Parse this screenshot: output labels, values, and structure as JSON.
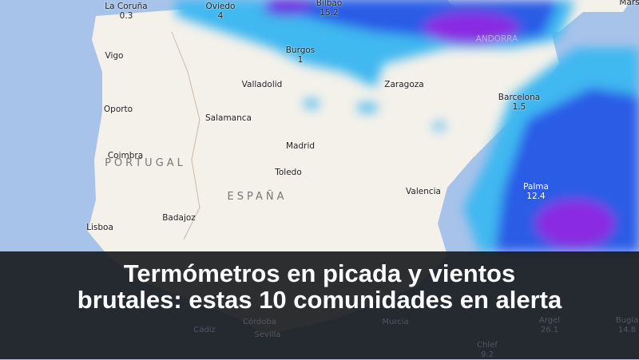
{
  "map": {
    "cities": [
      {
        "name": "La Coruña",
        "value": "0.3"
      },
      {
        "name": "Oviedo",
        "value": "4"
      },
      {
        "name": "Bilbao",
        "value": "15.2"
      },
      {
        "name": "Burgos",
        "value": "1"
      },
      {
        "name": "Vigo"
      },
      {
        "name": "Valladolid"
      },
      {
        "name": "Zaragoza"
      },
      {
        "name": "Oporto"
      },
      {
        "name": "Salamanca"
      },
      {
        "name": "Barcelona",
        "value": "1.5"
      },
      {
        "name": "Madrid"
      },
      {
        "name": "Coimbra"
      },
      {
        "name": "Toledo"
      },
      {
        "name": "Valencia"
      },
      {
        "name": "Palma",
        "value": "12.4"
      },
      {
        "name": "Badajoz"
      },
      {
        "name": "Lisboa"
      },
      {
        "name": "Mars"
      }
    ],
    "countries": [
      "PORTUGAL",
      "ESPAÑA",
      "ANDORRA"
    ],
    "under_overlay": [
      {
        "name": "Córdoba"
      },
      {
        "name": "Murcia"
      },
      {
        "name": "Sevilla"
      },
      {
        "name": "Cádiz"
      },
      {
        "name": "Argel",
        "value": "26.1"
      },
      {
        "name": "Bugia",
        "value": "14.8"
      },
      {
        "name": "Chlef",
        "value": "9.2"
      }
    ],
    "colors": {
      "sea": "#a8c3ea",
      "land": "#f4f1ea",
      "rain_light": "#3fb8f0",
      "rain_mid": "#2a5be6",
      "rain_heavy": "#8a2be2"
    }
  },
  "headline": {
    "line1": "Termómetros en picada y vientos",
    "line2": "brutales: estas 10 comunidades en alerta"
  }
}
